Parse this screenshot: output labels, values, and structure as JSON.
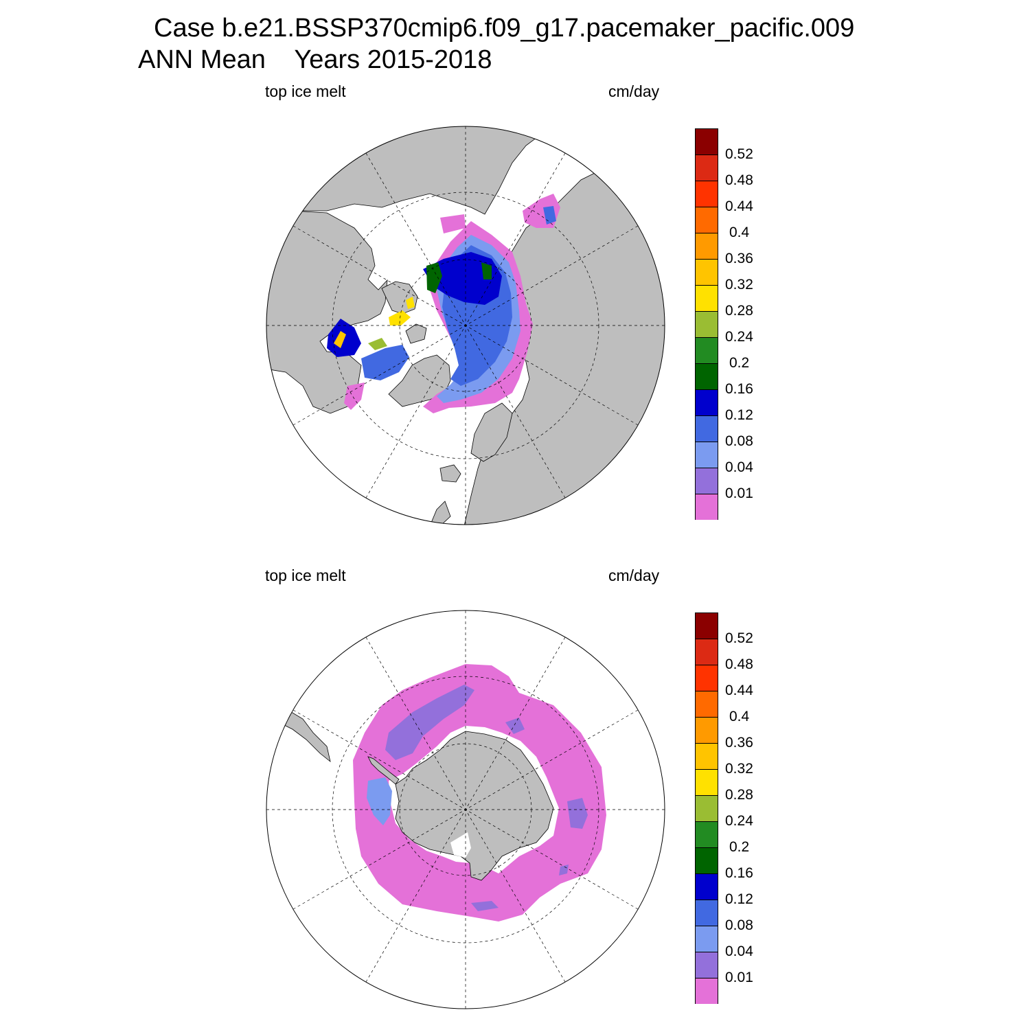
{
  "title": {
    "line1": "Case b.e21.BSSP370cmip6.f09_g17.pacemaker_pacific.009",
    "line2": "ANN Mean    Years 2015-2018"
  },
  "panels": [
    {
      "id": "north",
      "left_label": "top ice melt",
      "right_label": "cm/day",
      "hemisphere": "Arctic (north polar stereographic)"
    },
    {
      "id": "south",
      "left_label": "top ice melt",
      "right_label": "cm/day",
      "hemisphere": "Antarctic (south polar stereographic)"
    }
  ],
  "colorbar": {
    "colors": [
      "#e471d8",
      "#9370db",
      "#7b9bf0",
      "#4169e1",
      "#0000cd",
      "#006400",
      "#228b22",
      "#9abd33",
      "#ffe100",
      "#ffc400",
      "#ff9a00",
      "#ff6a00",
      "#ff3300",
      "#dc2a14",
      "#8b0000"
    ],
    "levels": [
      "0.01",
      "0.04",
      "0.08",
      "0.12",
      "0.16",
      "0.2",
      "0.24",
      "0.28",
      "0.32",
      "0.36",
      "0.4",
      "0.44",
      "0.48",
      "0.52"
    ]
  },
  "colors": {
    "land": "#bebebe",
    "ocean_no_ice": "#ffffff",
    "grid": "#000000"
  }
}
